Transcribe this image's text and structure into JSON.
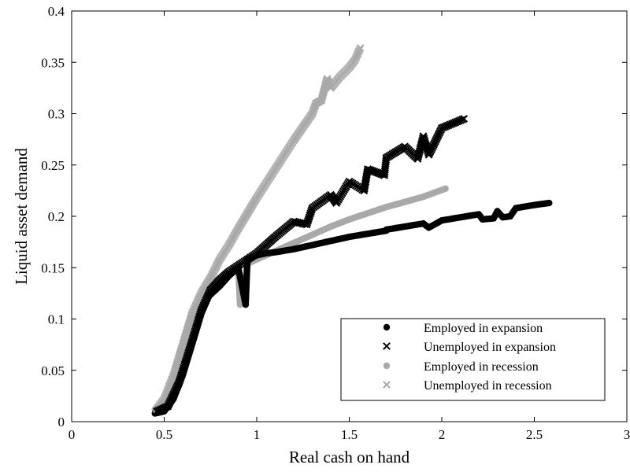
{
  "chart_data": {
    "type": "scatter",
    "title": "",
    "xlabel": "Real cash on hand",
    "ylabel": "Liquid asset demand",
    "xlim": [
      0,
      3
    ],
    "ylim": [
      0,
      0.4
    ],
    "grid": false,
    "legend_position": "bottom-right",
    "x_ticks": [
      "0",
      "0.5",
      "1",
      "1.5",
      "2",
      "2.5",
      "3"
    ],
    "y_ticks": [
      "0",
      "0.05",
      "0.1",
      "0.15",
      "0.2",
      "0.25",
      "0.3",
      "0.35",
      "0.4"
    ],
    "series": [
      {
        "name": "Employed in expansion",
        "marker": "dot",
        "color": "#000000",
        "points": [
          [
            0.45,
            0.008
          ],
          [
            0.5,
            0.01
          ],
          [
            0.55,
            0.022
          ],
          [
            0.6,
            0.045
          ],
          [
            0.65,
            0.075
          ],
          [
            0.7,
            0.105
          ],
          [
            0.74,
            0.122
          ],
          [
            0.8,
            0.132
          ],
          [
            0.85,
            0.142
          ],
          [
            0.9,
            0.15
          ],
          [
            0.95,
            0.158
          ],
          [
            1.0,
            0.162
          ],
          [
            1.05,
            0.164
          ],
          [
            1.1,
            0.165
          ],
          [
            1.2,
            0.168
          ],
          [
            1.3,
            0.172
          ],
          [
            1.4,
            0.176
          ],
          [
            1.5,
            0.18
          ],
          [
            1.6,
            0.183
          ],
          [
            1.7,
            0.186
          ],
          [
            1.8,
            0.19
          ],
          [
            1.9,
            0.193
          ],
          [
            2.0,
            0.196
          ],
          [
            2.1,
            0.199
          ],
          [
            2.2,
            0.202
          ],
          [
            2.3,
            0.205
          ],
          [
            2.4,
            0.208
          ],
          [
            2.5,
            0.211
          ],
          [
            2.58,
            0.213
          ],
          [
            0.94,
            0.114
          ],
          [
            1.7,
            0.187
          ],
          [
            1.93,
            0.189
          ],
          [
            2.22,
            0.197
          ],
          [
            2.28,
            0.198
          ],
          [
            2.33,
            0.199
          ],
          [
            2.37,
            0.2
          ]
        ]
      },
      {
        "name": "Unemployed in expansion",
        "marker": "x",
        "color": "#000000",
        "points": [
          [
            0.46,
            0.01
          ],
          [
            0.52,
            0.015
          ],
          [
            0.58,
            0.038
          ],
          [
            0.64,
            0.072
          ],
          [
            0.7,
            0.108
          ],
          [
            0.75,
            0.128
          ],
          [
            0.8,
            0.138
          ],
          [
            0.85,
            0.146
          ],
          [
            0.9,
            0.152
          ],
          [
            0.95,
            0.158
          ],
          [
            1.0,
            0.164
          ],
          [
            1.05,
            0.172
          ],
          [
            1.1,
            0.18
          ],
          [
            1.2,
            0.195
          ],
          [
            1.3,
            0.208
          ],
          [
            1.4,
            0.221
          ],
          [
            1.5,
            0.234
          ],
          [
            1.6,
            0.246
          ],
          [
            1.7,
            0.257
          ],
          [
            1.8,
            0.268
          ],
          [
            1.9,
            0.278
          ],
          [
            2.0,
            0.286
          ],
          [
            2.12,
            0.295
          ],
          [
            1.27,
            0.192
          ],
          [
            1.43,
            0.213
          ],
          [
            1.58,
            0.225
          ],
          [
            1.69,
            0.24
          ],
          [
            1.87,
            0.256
          ],
          [
            1.93,
            0.26
          ]
        ]
      },
      {
        "name": "Employed in recession",
        "marker": "dot",
        "color": "#a9a9a9",
        "points": [
          [
            0.45,
            0.012
          ],
          [
            0.5,
            0.02
          ],
          [
            0.55,
            0.04
          ],
          [
            0.6,
            0.07
          ],
          [
            0.65,
            0.1
          ],
          [
            0.7,
            0.12
          ],
          [
            0.75,
            0.13
          ],
          [
            0.8,
            0.138
          ],
          [
            0.85,
            0.145
          ],
          [
            0.9,
            0.15
          ],
          [
            0.95,
            0.154
          ],
          [
            1.0,
            0.158
          ],
          [
            1.1,
            0.166
          ],
          [
            1.2,
            0.174
          ],
          [
            1.3,
            0.182
          ],
          [
            1.4,
            0.19
          ],
          [
            1.5,
            0.197
          ],
          [
            1.6,
            0.203
          ],
          [
            1.7,
            0.209
          ],
          [
            1.8,
            0.214
          ],
          [
            1.9,
            0.219
          ],
          [
            2.02,
            0.227
          ],
          [
            0.91,
            0.114
          ],
          [
            0.94,
            0.14
          ],
          [
            0.93,
            0.13
          ]
        ]
      },
      {
        "name": "Unemployed in recession",
        "marker": "x",
        "color": "#a9a9a9",
        "points": [
          [
            0.46,
            0.012
          ],
          [
            0.5,
            0.022
          ],
          [
            0.55,
            0.045
          ],
          [
            0.6,
            0.075
          ],
          [
            0.65,
            0.105
          ],
          [
            0.7,
            0.125
          ],
          [
            0.75,
            0.14
          ],
          [
            0.8,
            0.158
          ],
          [
            0.85,
            0.172
          ],
          [
            0.9,
            0.188
          ],
          [
            0.95,
            0.203
          ],
          [
            1.0,
            0.218
          ],
          [
            1.05,
            0.232
          ],
          [
            1.1,
            0.246
          ],
          [
            1.15,
            0.26
          ],
          [
            1.2,
            0.274
          ],
          [
            1.25,
            0.287
          ],
          [
            1.3,
            0.3
          ],
          [
            1.35,
            0.313
          ],
          [
            1.4,
            0.325
          ],
          [
            1.45,
            0.336
          ],
          [
            1.5,
            0.345
          ],
          [
            1.56,
            0.364
          ],
          [
            1.32,
            0.31
          ],
          [
            1.38,
            0.334
          ],
          [
            1.53,
            0.352
          ]
        ]
      }
    ]
  }
}
